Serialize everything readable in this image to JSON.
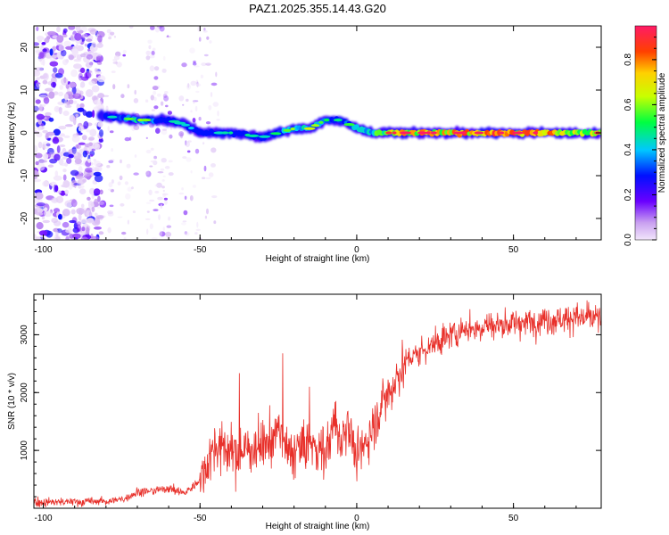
{
  "chart_data": [
    {
      "type": "heatmap",
      "title": "PAZ1.2025.355.14.43.G20",
      "xlabel": "Height of straight line (km)",
      "ylabel": "Frequency (Hz)",
      "xlim": [
        -103,
        78
      ],
      "ylim": [
        -25,
        25
      ],
      "xticks": [
        -100,
        -50,
        0,
        50
      ],
      "yticks": [
        -20,
        -10,
        0,
        10,
        20
      ],
      "colorbar": {
        "label": "Normalized spectral amplitude",
        "range": [
          0,
          0.95
        ],
        "ticks": [
          0.0,
          0.2,
          0.4,
          0.6,
          0.8
        ]
      },
      "ridge": {
        "x": [
          -82,
          -75,
          -70,
          -65,
          -60,
          -55,
          -50,
          -45,
          -40,
          -35,
          -30,
          -25,
          -20,
          -15,
          -10,
          -5,
          0,
          5,
          10,
          20,
          30,
          40,
          50,
          60,
          70,
          78
        ],
        "freq": [
          4,
          3.5,
          3,
          3,
          3,
          2,
          0,
          0,
          0,
          -0.5,
          -1,
          0,
          1,
          1,
          3,
          3,
          1,
          0,
          0,
          0,
          0,
          0,
          0,
          0,
          0,
          0
        ],
        "amplitude": [
          0.2,
          0.4,
          0.5,
          0.45,
          0.35,
          0.3,
          0.25,
          0.3,
          0.35,
          0.35,
          0.3,
          0.4,
          0.5,
          0.55,
          0.4,
          0.35,
          0.5,
          0.6,
          0.8,
          0.9,
          0.9,
          0.95,
          0.95,
          0.9,
          0.85,
          0.8
        ]
      }
    },
    {
      "type": "line",
      "xlabel": "Height of straight line (km)",
      "ylabel": "SNR (10 * v/v)",
      "xlim": [
        -103,
        78
      ],
      "ylim": [
        0,
        3700
      ],
      "xticks": [
        -100,
        -50,
        0,
        50
      ],
      "yticks": [
        1000,
        2000,
        3000
      ],
      "series": [
        {
          "name": "SNR",
          "color": "#e8302a",
          "x": [
            -103,
            -90,
            -80,
            -75,
            -70,
            -65,
            -60,
            -55,
            -52,
            -50,
            -47,
            -45,
            -40,
            -35,
            -30,
            -27,
            -25,
            -22,
            -20,
            -15,
            -12,
            -10,
            -7,
            -5,
            -3,
            0,
            5,
            10,
            15,
            20,
            25,
            30,
            35,
            40,
            50,
            60,
            70,
            78
          ],
          "y": [
            100,
            110,
            120,
            150,
            280,
            300,
            350,
            260,
            380,
            500,
            900,
            1100,
            950,
            1000,
            1100,
            1200,
            1400,
            900,
            1000,
            1100,
            1050,
            950,
            1500,
            1100,
            1600,
            800,
            1400,
            2000,
            2500,
            2700,
            2850,
            3000,
            3100,
            3150,
            3200,
            3250,
            3300,
            3280
          ]
        }
      ]
    }
  ]
}
